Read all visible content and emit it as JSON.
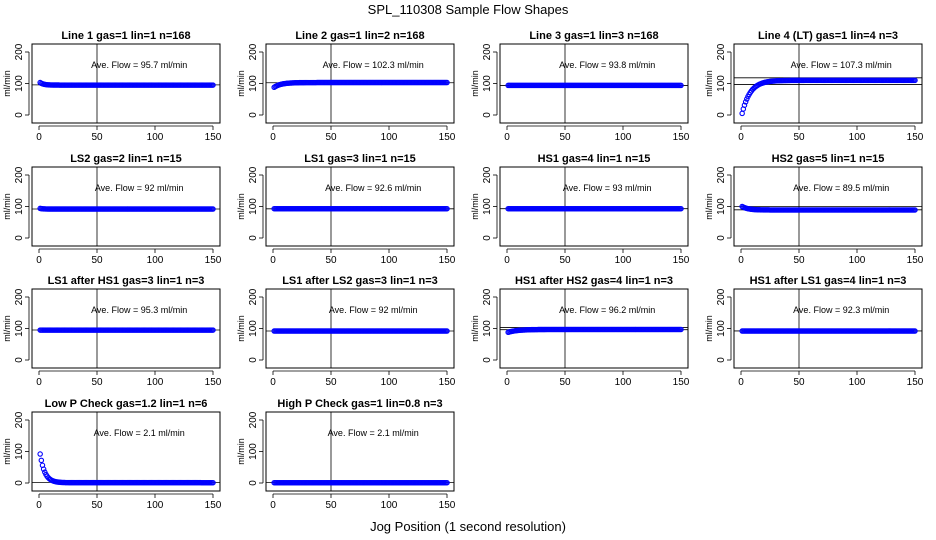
{
  "title": "SPL_110308  Sample Flow Shapes",
  "xlabel": "Jog Position (1 second resolution)",
  "ylabel": "ml/min",
  "marker_color": "#0000ff",
  "chart_data": [
    {
      "type": "scatter",
      "title": "Line 1 gas=1 lin=1 n=168",
      "annotation": "Ave. Flow =  95.7  ml/min",
      "xlim": [
        0,
        150
      ],
      "ylim": [
        0,
        200
      ],
      "xticks": [
        "0",
        "50",
        "100",
        "150"
      ],
      "yticks": [
        "0",
        "100",
        "200"
      ],
      "vline_x": 50,
      "hlines": [
        95.7
      ],
      "curve": {
        "start": 103,
        "end": 95,
        "tau": 3,
        "rises": false
      }
    },
    {
      "type": "scatter",
      "title": "Line 2 gas=1 lin=2 n=168",
      "annotation": "Ave. Flow =  102.3  ml/min",
      "xlim": [
        0,
        150
      ],
      "ylim": [
        0,
        200
      ],
      "xticks": [
        "0",
        "50",
        "100",
        "150"
      ],
      "yticks": [
        "0",
        "100",
        "200"
      ],
      "vline_x": 50,
      "hlines": [
        102.3
      ],
      "curve": {
        "start": 88,
        "end": 103,
        "tau": 6,
        "rises": true
      }
    },
    {
      "type": "scatter",
      "title": "Line 3 gas=1 lin=3 n=168",
      "annotation": "Ave. Flow =  93.8  ml/min",
      "xlim": [
        0,
        150
      ],
      "ylim": [
        0,
        200
      ],
      "xticks": [
        "0",
        "50",
        "100",
        "150"
      ],
      "yticks": [
        "0",
        "100",
        "200"
      ],
      "vline_x": 50,
      "hlines": [
        93.8
      ],
      "curve": {
        "start": 94,
        "end": 94,
        "tau": 1,
        "rises": false
      }
    },
    {
      "type": "scatter",
      "title": "Line 4 (LT) gas=1 lin=4 n=3",
      "annotation": "Ave. Flow =  107.3  ml/min",
      "xlim": [
        0,
        150
      ],
      "ylim": [
        0,
        200
      ],
      "xticks": [
        "0",
        "50",
        "100",
        "150"
      ],
      "yticks": [
        "0",
        "100",
        "200"
      ],
      "vline_x": 50,
      "hlines": [
        97,
        118
      ],
      "curve": {
        "start": 5,
        "end": 110,
        "tau": 7,
        "rises": true
      }
    },
    {
      "type": "scatter",
      "title": "LS2 gas=2 lin=1 n=15",
      "annotation": "Ave. Flow =  92  ml/min",
      "xlim": [
        0,
        150
      ],
      "ylim": [
        0,
        200
      ],
      "xticks": [
        "0",
        "50",
        "100",
        "150"
      ],
      "yticks": [
        "0",
        "100",
        "200"
      ],
      "vline_x": 50,
      "hlines": [
        92
      ],
      "curve": {
        "start": 94,
        "end": 92,
        "tau": 2,
        "rises": false
      }
    },
    {
      "type": "scatter",
      "title": "LS1 gas=3 lin=1 n=15",
      "annotation": "Ave. Flow =  92.6  ml/min",
      "xlim": [
        0,
        150
      ],
      "ylim": [
        0,
        200
      ],
      "xticks": [
        "0",
        "50",
        "100",
        "150"
      ],
      "yticks": [
        "0",
        "100",
        "200"
      ],
      "vline_x": 50,
      "hlines": [
        92.6
      ],
      "curve": {
        "start": 93,
        "end": 93,
        "tau": 1,
        "rises": false
      }
    },
    {
      "type": "scatter",
      "title": "HS1 gas=4 lin=1 n=15",
      "annotation": "Ave. Flow =  93  ml/min",
      "xlim": [
        0,
        150
      ],
      "ylim": [
        0,
        200
      ],
      "xticks": [
        "0",
        "50",
        "100",
        "150"
      ],
      "yticks": [
        "0",
        "100",
        "200"
      ],
      "vline_x": 50,
      "hlines": [
        93
      ],
      "curve": {
        "start": 93,
        "end": 93,
        "tau": 1,
        "rises": false
      }
    },
    {
      "type": "scatter",
      "title": "HS2 gas=5 lin=1 n=15",
      "annotation": "Ave. Flow =  89.5  ml/min",
      "xlim": [
        0,
        150
      ],
      "ylim": [
        0,
        200
      ],
      "xticks": [
        "0",
        "50",
        "100",
        "150"
      ],
      "yticks": [
        "0",
        "100",
        "200"
      ],
      "vline_x": 50,
      "hlines": [
        89.5,
        100
      ],
      "curve": {
        "start": 100,
        "end": 89,
        "tau": 5,
        "rises": false
      }
    },
    {
      "type": "scatter",
      "title": "LS1 after HS1 gas=3 lin=1 n=3",
      "annotation": "Ave. Flow =  95.3  ml/min",
      "xlim": [
        0,
        150
      ],
      "ylim": [
        0,
        200
      ],
      "xticks": [
        "0",
        "50",
        "100",
        "150"
      ],
      "yticks": [
        "0",
        "100",
        "200"
      ],
      "vline_x": 50,
      "hlines": [
        95.3
      ],
      "curve": {
        "start": 95,
        "end": 95,
        "tau": 1,
        "rises": false
      }
    },
    {
      "type": "scatter",
      "title": "LS1 after LS2 gas=3 lin=1 n=3",
      "annotation": "Ave. Flow =  92  ml/min",
      "xlim": [
        0,
        150
      ],
      "ylim": [
        0,
        200
      ],
      "xticks": [
        "0",
        "50",
        "100",
        "150"
      ],
      "yticks": [
        "0",
        "100",
        "200"
      ],
      "vline_x": 50,
      "hlines": [
        92
      ],
      "curve": {
        "start": 92,
        "end": 92,
        "tau": 1,
        "rises": false
      }
    },
    {
      "type": "scatter",
      "title": "HS1 after HS2 gas=4 lin=1 n=3",
      "annotation": "Ave. Flow =  96.2  ml/min",
      "xlim": [
        0,
        150
      ],
      "ylim": [
        0,
        200
      ],
      "xticks": [
        "0",
        "50",
        "100",
        "150"
      ],
      "yticks": [
        "0",
        "100",
        "200"
      ],
      "vline_x": 50,
      "hlines": [
        96.2,
        103
      ],
      "curve": {
        "start": 88,
        "end": 97,
        "tau": 8,
        "rises": true
      }
    },
    {
      "type": "scatter",
      "title": "HS1 after LS1 gas=4 lin=1 n=3",
      "annotation": "Ave. Flow =  92.3  ml/min",
      "xlim": [
        0,
        150
      ],
      "ylim": [
        0,
        200
      ],
      "xticks": [
        "0",
        "50",
        "100",
        "150"
      ],
      "yticks": [
        "0",
        "100",
        "200"
      ],
      "vline_x": 50,
      "hlines": [
        92.3
      ],
      "curve": {
        "start": 92,
        "end": 92,
        "tau": 1,
        "rises": false
      }
    },
    {
      "type": "scatter",
      "title": "Low P Check gas=1.2 lin=1 n=6",
      "annotation": "Ave. Flow =  2.1  ml/min",
      "xlim": [
        0,
        150
      ],
      "ylim": [
        0,
        200
      ],
      "xticks": [
        "0",
        "50",
        "100",
        "150"
      ],
      "yticks": [
        "0",
        "100",
        "200"
      ],
      "vline_x": 50,
      "hlines": [
        2.1
      ],
      "curve": {
        "start": 92,
        "end": 1,
        "tau": 4,
        "rises": false
      }
    },
    {
      "type": "scatter",
      "title": "High P Check gas=1 lin=0.8 n=3",
      "annotation": "Ave. Flow =  2.1  ml/min",
      "xlim": [
        0,
        150
      ],
      "ylim": [
        0,
        200
      ],
      "xticks": [
        "0",
        "50",
        "100",
        "150"
      ],
      "yticks": [
        "0",
        "100",
        "200"
      ],
      "vline_x": 50,
      "hlines": [
        2.1
      ],
      "curve": {
        "start": 1,
        "end": 1,
        "tau": 1,
        "rises": false
      }
    }
  ]
}
